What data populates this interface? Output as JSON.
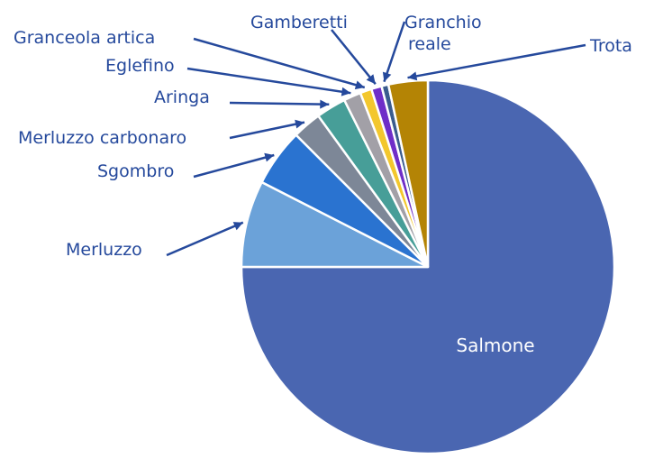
{
  "chart_data": {
    "type": "pie",
    "title": "",
    "start_angle_deg": 0,
    "direction": "clockwise",
    "slices": [
      {
        "label": "Salmone",
        "value": 75.0,
        "color": "#4a66b1",
        "label_inside": true
      },
      {
        "label": "Merluzzo",
        "value": 7.5,
        "color": "#6ba2d9"
      },
      {
        "label": "Sgombro",
        "value": 5.0,
        "color": "#2a73d0"
      },
      {
        "label": "Merluzzo carbonaro",
        "value": 2.5,
        "color": "#7d8797"
      },
      {
        "label": "Aringa",
        "value": 2.6,
        "color": "#479e98"
      },
      {
        "label": "Eglefino",
        "value": 1.5,
        "color": "#a2a0a7"
      },
      {
        "label": "Granceola artica",
        "value": 1.0,
        "color": "#f3c72d"
      },
      {
        "label": "Gamberetti",
        "value": 0.9,
        "color": "#6f2ec8"
      },
      {
        "label": "Granchio reale",
        "value": 0.6,
        "color": "#3a5c8e"
      },
      {
        "label": "Trota",
        "value": 3.4,
        "color": "#b48405"
      }
    ]
  }
}
